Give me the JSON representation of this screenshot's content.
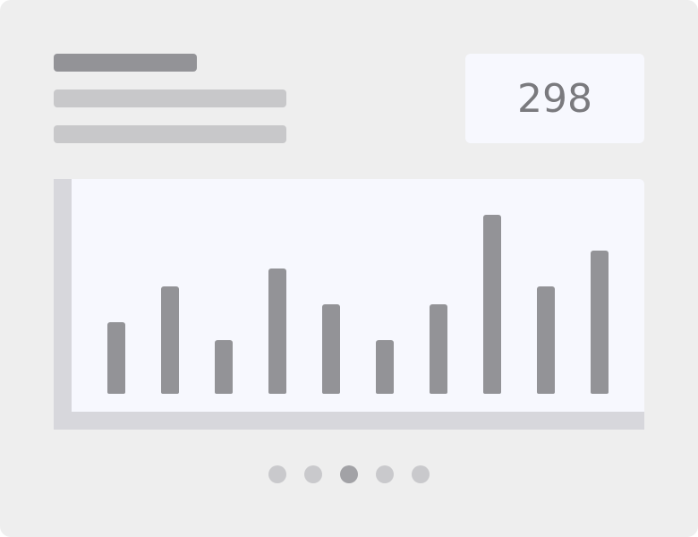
{
  "stat": {
    "value": "298"
  },
  "chart_data": {
    "type": "bar",
    "categories": [
      "",
      "",
      "",
      "",
      "",
      "",
      "",
      "",
      "",
      ""
    ],
    "values": [
      4,
      6,
      3,
      7,
      5,
      3,
      5,
      10,
      6,
      8
    ],
    "ylim": [
      0,
      10
    ],
    "grid": false,
    "bar_color": "#939397"
  },
  "pagination": {
    "pages": 5,
    "active_index": 2
  },
  "colors": {
    "card_bg": "#eeeeee",
    "panel_bg": "#f7f8fe",
    "axis": "#d7d7dc",
    "skeleton_dark": "#939397",
    "skeleton_light": "#c8c8ca",
    "dot": "#c9c9cc",
    "dot_active": "#a2a2a6"
  }
}
